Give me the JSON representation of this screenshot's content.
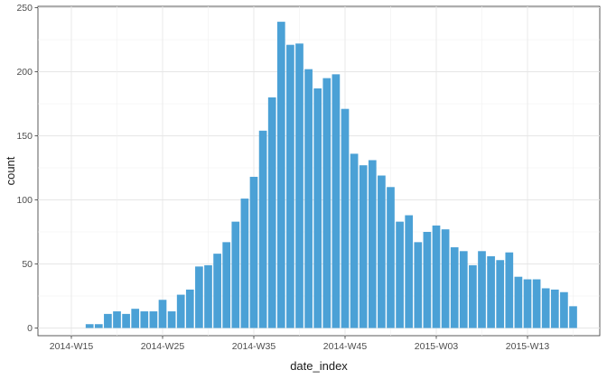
{
  "chart_data": {
    "type": "bar",
    "xlabel": "date_index",
    "ylabel": "count",
    "ylim": [
      0,
      250
    ],
    "y_ticks": [
      0,
      50,
      100,
      150,
      200,
      250
    ],
    "x_tick_labels": [
      "2014-W15",
      "2014-W25",
      "2014-W35",
      "2014-W45",
      "2015-W03",
      "2015-W13"
    ],
    "bar_color": "#4ba1d6",
    "grid": true,
    "x": [
      "2014-W15",
      "2014-W16",
      "2014-W17",
      "2014-W18",
      "2014-W19",
      "2014-W20",
      "2014-W21",
      "2014-W22",
      "2014-W23",
      "2014-W24",
      "2014-W25",
      "2014-W26",
      "2014-W27",
      "2014-W28",
      "2014-W29",
      "2014-W30",
      "2014-W31",
      "2014-W32",
      "2014-W33",
      "2014-W34",
      "2014-W35",
      "2014-W36",
      "2014-W37",
      "2014-W38",
      "2014-W39",
      "2014-W40",
      "2014-W41",
      "2014-W42",
      "2014-W43",
      "2014-W44",
      "2014-W45",
      "2014-W46",
      "2014-W47",
      "2014-W48",
      "2014-W49",
      "2014-W50",
      "2014-W51",
      "2014-W52",
      "2015-W01",
      "2015-W02",
      "2015-W03",
      "2015-W04",
      "2015-W05",
      "2015-W06",
      "2015-W07",
      "2015-W08",
      "2015-W09",
      "2015-W10",
      "2015-W11",
      "2015-W12",
      "2015-W13",
      "2015-W14",
      "2015-W15",
      "2015-W16",
      "2015-W17",
      "2015-W18",
      "2015-W19"
    ],
    "values": [
      0,
      0,
      3,
      3,
      11,
      13,
      11,
      15,
      13,
      13,
      22,
      13,
      26,
      30,
      48,
      49,
      58,
      67,
      83,
      101,
      118,
      154,
      180,
      239,
      221,
      222,
      202,
      187,
      195,
      198,
      171,
      136,
      127,
      131,
      119,
      110,
      83,
      88,
      67,
      75,
      80,
      77,
      63,
      60,
      49,
      60,
      56,
      53,
      59,
      40,
      38,
      38,
      31,
      30,
      28,
      17,
      0
    ]
  }
}
